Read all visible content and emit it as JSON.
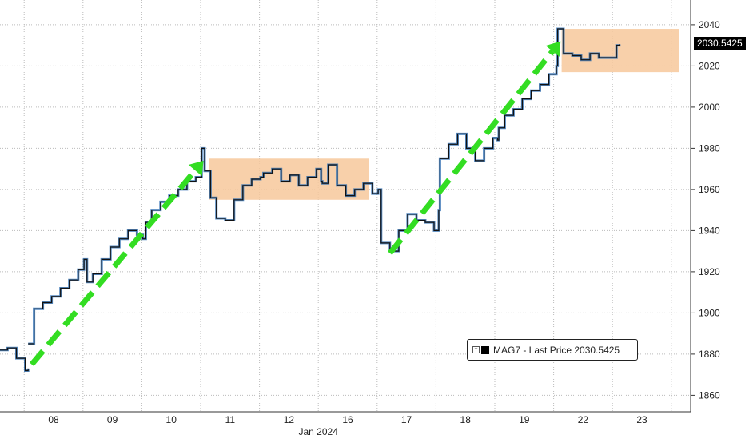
{
  "chart_data": {
    "type": "line",
    "title": "",
    "xlabel": "Jan 2024",
    "ylabel": "",
    "ylim": [
      1852,
      2052
    ],
    "y_ticks": [
      1860,
      1880,
      1900,
      1920,
      1940,
      1960,
      1980,
      2000,
      2020,
      2040
    ],
    "y_tick_labels": [
      "1860",
      "1880",
      "1900",
      "1920",
      "1940",
      "1960",
      "1980",
      "2000",
      "2020",
      "2040"
    ],
    "x_tick_labels": [
      "08",
      "09",
      "10",
      "11",
      "12",
      "16",
      "17",
      "18",
      "19",
      "22",
      "23"
    ],
    "x_axis_month_label": "Jan 2024",
    "grid": true,
    "legend_placement": "bottom-right",
    "last_price": "2030.5425",
    "colors": {
      "price_line": "#111111",
      "price_line_shadow": "#2b6cb0",
      "trend_arrow": "#33dd22",
      "range_box": "#f7c89b",
      "grid": "#bbbbbb"
    },
    "series": [
      {
        "name": "MAG7 - Last Price",
        "x": [
          -0.5,
          -0.35,
          -0.2,
          -0.05,
          0.0,
          0.0,
          0.1,
          0.25,
          0.4,
          0.55,
          0.7,
          0.85,
          0.95,
          1.0,
          1.1,
          1.25,
          1.4,
          1.55,
          1.7,
          1.85,
          1.95,
          2.0,
          2.1,
          2.25,
          2.4,
          2.55,
          2.7,
          2.85,
          2.95,
          3.0,
          3.1,
          3.2,
          3.35,
          3.5,
          3.65,
          3.8,
          3.95,
          4.0,
          4.15,
          4.3,
          4.45,
          4.6,
          4.75,
          4.9,
          4.98,
          5.0,
          5.1,
          5.25,
          5.4,
          5.55,
          5.7,
          5.85,
          5.95,
          6.0,
          6.15,
          6.3,
          6.45,
          6.6,
          6.75,
          6.9,
          6.98,
          7.0,
          7.15,
          7.3,
          7.45,
          7.6,
          7.75,
          7.9,
          7.98,
          8.0,
          8.1,
          8.25,
          8.4,
          8.55,
          8.7,
          8.85,
          8.98,
          9.0,
          9.1,
          9.25,
          9.4,
          9.55,
          9.7,
          9.85,
          10.0,
          10.05
        ],
        "y": [
          1882,
          1883,
          1878,
          1872,
          1873,
          1885,
          1902,
          1905,
          1908,
          1912,
          1916,
          1921,
          1926,
          1915,
          1919,
          1926,
          1932,
          1936,
          1940,
          1938,
          1936,
          1944,
          1950,
          1954,
          1957,
          1960,
          1964,
          1966,
          1980,
          1969,
          1956,
          1946,
          1945,
          1955,
          1962,
          1965,
          1966,
          1968,
          1970,
          1964,
          1967,
          1962,
          1966,
          1970,
          1964,
          1963,
          1972,
          1962,
          1957,
          1960,
          1963,
          1958,
          1960,
          1934,
          1930,
          1940,
          1948,
          1945,
          1944,
          1940,
          1950,
          1975,
          1982,
          1987,
          1980,
          1974,
          1980,
          1985,
          1984,
          1990,
          1996,
          1999,
          2004,
          2008,
          2011,
          2016,
          2020,
          2038,
          2026,
          2025,
          2023,
          2026,
          2024,
          2024,
          2030,
          2030.5
        ]
      }
    ],
    "consolidation_ranges": [
      {
        "x_start": 3.0,
        "x_end": 5.73,
        "y_low": 1955,
        "y_high": 1975
      },
      {
        "x_start": 9.0,
        "x_end": 11.0,
        "y_low": 2017,
        "y_high": 2038
      }
    ],
    "trend_arrows": [
      {
        "x_start": 0.06,
        "y_start": 1875,
        "x_end": 2.98,
        "y_end": 1974
      },
      {
        "x_start": 6.15,
        "y_start": 1929,
        "x_end": 9.05,
        "y_end": 2032
      }
    ]
  },
  "legend": {
    "expand_glyph": "⊞",
    "label": "MAG7 - Last Price 2030.5425"
  }
}
